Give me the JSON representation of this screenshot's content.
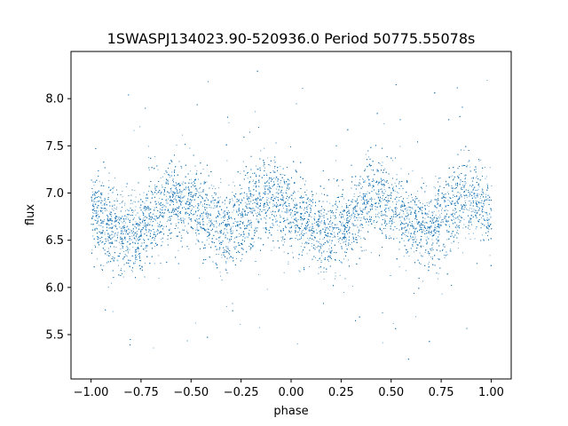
{
  "chart_data": {
    "type": "scatter",
    "title": "1SWASPJ134023.90-520936.0 Period 50775.55078s",
    "xlabel": "phase",
    "ylabel": "flux",
    "xlim": [
      -1.1,
      1.1
    ],
    "ylim": [
      5.03,
      8.5
    ],
    "xticks": [
      -1.0,
      -0.75,
      -0.5,
      -0.25,
      0.0,
      0.25,
      0.5,
      0.75,
      1.0
    ],
    "xtick_labels": [
      "−1.00",
      "−0.75",
      "−0.50",
      "−0.25",
      "0.00",
      "0.25",
      "0.50",
      "0.75",
      "1.00"
    ],
    "yticks": [
      5.5,
      6.0,
      6.5,
      7.0,
      7.5,
      8.0
    ],
    "ytick_labels": [
      "5.5",
      "6.0",
      "6.5",
      "7.0",
      "7.5",
      "8.0"
    ],
    "grid": false,
    "point_color": "#1f77b4",
    "x_range": [
      -1.0,
      1.0
    ],
    "y_range": [
      5.2,
      8.3
    ],
    "light_curve": {
      "phase": [
        -1.0,
        -0.9,
        -0.8,
        -0.7,
        -0.6,
        -0.5,
        -0.4,
        -0.3,
        -0.2,
        -0.1,
        0.0,
        0.1,
        0.2,
        0.3,
        0.4,
        0.5,
        0.6,
        0.7,
        0.8,
        0.9,
        1.0
      ],
      "flux": [
        6.8,
        6.62,
        6.55,
        6.75,
        6.95,
        6.88,
        6.68,
        6.62,
        6.85,
        6.97,
        6.8,
        6.62,
        6.55,
        6.75,
        6.95,
        6.88,
        6.68,
        6.62,
        6.85,
        6.97,
        6.8
      ]
    },
    "n_points": 16000
  }
}
